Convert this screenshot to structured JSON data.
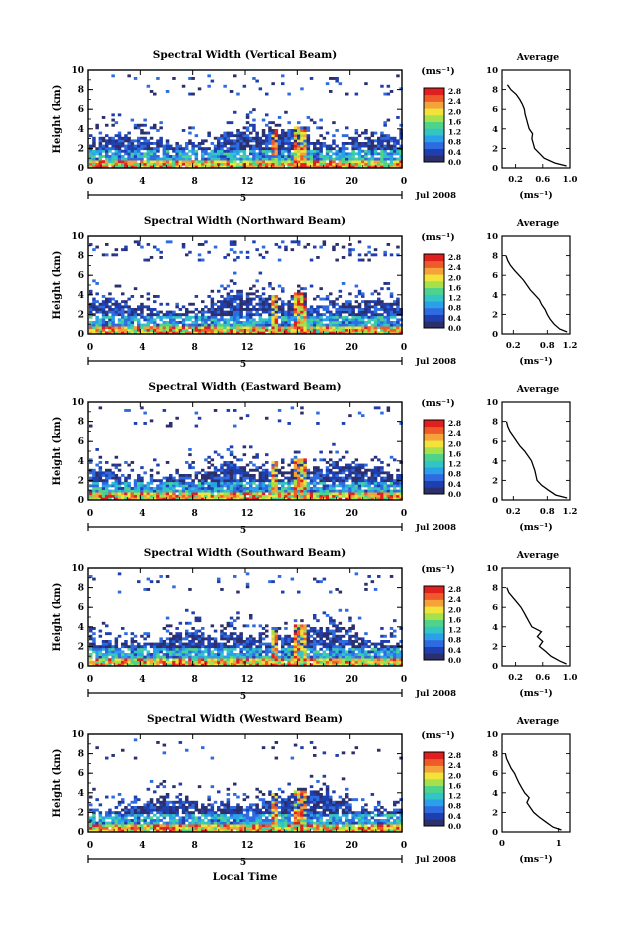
{
  "figure": {
    "xlabel": "Local Time",
    "date_label": "Jul 2008",
    "avg_title": "Average",
    "unit_label": "(ms⁻¹)",
    "x_ticks": [
      "0",
      "4",
      "8",
      "12",
      "16",
      "20",
      "0"
    ],
    "y_ticks": [
      "0",
      "2",
      "4",
      "6",
      "8",
      "10"
    ],
    "avg_y_ticks": [
      "0",
      "2",
      "4",
      "6",
      "8",
      "10"
    ],
    "day_label": "5",
    "colorbar_ticks": [
      "0.0",
      "0.4",
      "0.8",
      "1.2",
      "1.6",
      "2.0",
      "2.4",
      "2.8"
    ],
    "colormap": [
      "#2b2f6b",
      "#1f3fb0",
      "#2f6be0",
      "#2aa0e8",
      "#33c4c4",
      "#4fd38a",
      "#a6e04a",
      "#f2e33a",
      "#f5a23a",
      "#ef5a2a",
      "#e0201e"
    ]
  },
  "chart_data": [
    {
      "type": "heatmap",
      "title": "Spectral Width (Vertical Beam)",
      "ylabel": "Height (km)",
      "xlim": [
        0,
        24
      ],
      "ylim": [
        0,
        10
      ],
      "avg_title": "Average",
      "avg_xlabel": "(ms⁻¹)",
      "avg_xlim": [
        0.0,
        1.0
      ],
      "avg_xticks": [
        "0.2",
        "0.6",
        "1.0"
      ],
      "avg_profile": {
        "height_km": [
          0.2,
          0.5,
          1.0,
          1.5,
          2.0,
          2.5,
          3.0,
          3.5,
          4.0,
          4.5,
          5.0,
          5.5,
          6.0,
          6.5,
          7.0,
          7.5,
          8.0,
          8.5
        ],
        "value": [
          0.95,
          0.78,
          0.62,
          0.55,
          0.48,
          0.46,
          0.44,
          0.45,
          0.4,
          0.38,
          0.36,
          0.34,
          0.33,
          0.3,
          0.26,
          0.21,
          0.13,
          0.08
        ]
      }
    },
    {
      "type": "heatmap",
      "title": "Spectral Width (Northward Beam)",
      "ylabel": "Height (km)",
      "xlim": [
        0,
        24
      ],
      "ylim": [
        0,
        10
      ],
      "avg_title": "Average",
      "avg_xlabel": "(ms⁻¹)",
      "avg_xlim": [
        0.0,
        1.2
      ],
      "avg_xticks": [
        "0.2",
        "0.8",
        "1.2"
      ],
      "avg_profile": {
        "height_km": [
          0.2,
          0.5,
          1.0,
          1.5,
          2.0,
          2.5,
          3.0,
          3.5,
          4.0,
          4.5,
          5.0,
          5.5,
          6.0,
          6.5,
          7.0,
          7.5,
          8.0
        ],
        "value": [
          1.15,
          1.02,
          0.92,
          0.85,
          0.8,
          0.76,
          0.7,
          0.66,
          0.58,
          0.5,
          0.44,
          0.38,
          0.3,
          0.22,
          0.15,
          0.1,
          0.07
        ]
      }
    },
    {
      "type": "heatmap",
      "title": "Spectral Width (Eastward Beam)",
      "ylabel": "Height (km)",
      "xlim": [
        0,
        24
      ],
      "ylim": [
        0,
        10
      ],
      "avg_title": "Average",
      "avg_xlabel": "(ms⁻¹)",
      "avg_xlim": [
        0.0,
        1.2
      ],
      "avg_xticks": [
        "0.2",
        "0.8",
        "1.2"
      ],
      "avg_profile": {
        "height_km": [
          0.2,
          0.5,
          1.0,
          1.5,
          2.0,
          2.5,
          3.0,
          3.5,
          4.0,
          4.5,
          5.0,
          5.5,
          6.0,
          6.5,
          7.0,
          7.5,
          8.0
        ],
        "value": [
          1.15,
          0.95,
          0.82,
          0.7,
          0.62,
          0.6,
          0.58,
          0.55,
          0.52,
          0.46,
          0.4,
          0.32,
          0.26,
          0.2,
          0.14,
          0.1,
          0.08
        ]
      }
    },
    {
      "type": "heatmap",
      "title": "Spectral Width (Southward Beam)",
      "ylabel": "Height (km)",
      "xlim": [
        0,
        24
      ],
      "ylim": [
        0,
        10
      ],
      "avg_title": "Average",
      "avg_xlabel": "(ms⁻¹)",
      "avg_xlim": [
        0.0,
        1.0
      ],
      "avg_xticks": [
        "0.2",
        "0.6",
        "1.0"
      ],
      "avg_profile": {
        "height_km": [
          0.2,
          0.5,
          1.0,
          1.5,
          2.0,
          2.5,
          3.0,
          3.5,
          4.0,
          4.5,
          5.0,
          5.5,
          6.0,
          6.5,
          7.0,
          7.5,
          8.0
        ],
        "value": [
          0.95,
          0.85,
          0.72,
          0.64,
          0.55,
          0.6,
          0.52,
          0.58,
          0.44,
          0.4,
          0.36,
          0.32,
          0.28,
          0.22,
          0.16,
          0.1,
          0.07
        ]
      }
    },
    {
      "type": "heatmap",
      "title": "Spectral Width (Westward Beam)",
      "ylabel": "Height (km)",
      "xlim": [
        0,
        24
      ],
      "ylim": [
        0,
        10
      ],
      "avg_title": "Average",
      "avg_xlabel": "(ms⁻¹)",
      "avg_xlim": [
        0.0,
        1.2
      ],
      "avg_xticks": [
        "0",
        "1"
      ],
      "avg_profile": {
        "height_km": [
          0.2,
          0.5,
          1.0,
          1.5,
          2.0,
          2.5,
          3.0,
          3.5,
          4.0,
          4.5,
          5.0,
          5.5,
          6.0,
          6.5,
          7.0,
          7.5,
          8.0
        ],
        "value": [
          1.05,
          0.9,
          0.78,
          0.66,
          0.56,
          0.5,
          0.44,
          0.48,
          0.4,
          0.35,
          0.3,
          0.26,
          0.22,
          0.16,
          0.12,
          0.08,
          0.06
        ]
      }
    }
  ]
}
